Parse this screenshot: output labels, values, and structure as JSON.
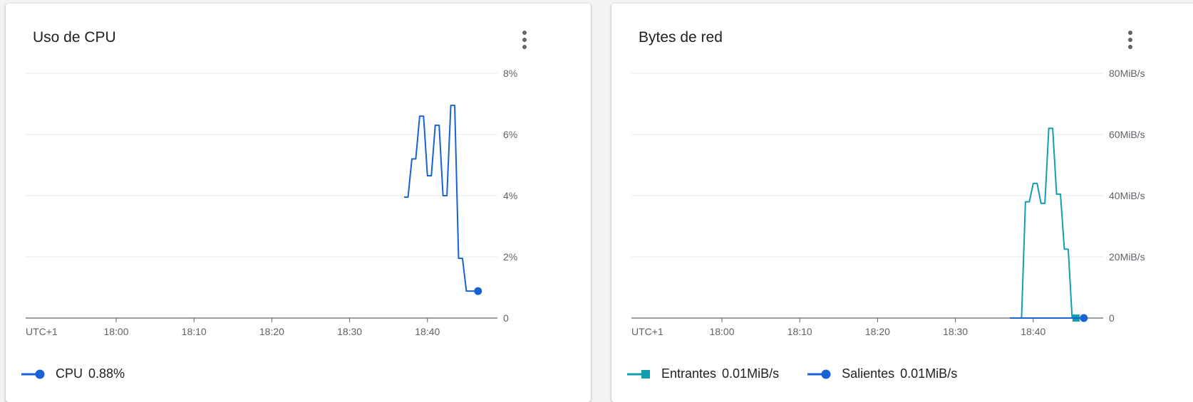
{
  "chart_data": [
    {
      "type": "line",
      "title": "Uso de CPU",
      "timezone_label": "UTC+1",
      "x_ticks": [
        "18:00",
        "18:10",
        "18:20",
        "18:30",
        "18:40"
      ],
      "x_range": [
        "17:48.4",
        "18:48.4"
      ],
      "y_ticks": [
        "8%",
        "6%",
        "4%",
        "2%",
        "0"
      ],
      "ylim": [
        0,
        8
      ],
      "y_unit": "%",
      "grid": true,
      "legend_position": "bottom-left",
      "series": [
        {
          "name": "CPU",
          "current_value": "0.88%",
          "color": "#1a62d4",
          "marker": "circle",
          "x": [
            "18:37:00",
            "18:37:30",
            "18:38:00",
            "18:38:30",
            "18:39:00",
            "18:39:30",
            "18:40:00",
            "18:40:30",
            "18:41:00",
            "18:41:30",
            "18:42:00",
            "18:42:30",
            "18:43:00",
            "18:43:30",
            "18:44:00",
            "18:44:30",
            "18:45:00",
            "18:45:30",
            "18:46:00",
            "18:46:30"
          ],
          "values": [
            3.95,
            3.95,
            5.2,
            5.2,
            6.6,
            6.6,
            4.65,
            4.65,
            6.3,
            6.3,
            4.0,
            4.0,
            6.95,
            6.95,
            1.95,
            1.95,
            0.88,
            0.88,
            0.88,
            0.88
          ]
        }
      ]
    },
    {
      "type": "line",
      "title": "Bytes de red",
      "timezone_label": "UTC+1",
      "x_ticks": [
        "18:00",
        "18:10",
        "18:20",
        "18:30",
        "18:40"
      ],
      "y_ticks": [
        "80MiB/s",
        "60MiB/s",
        "40MiB/s",
        "20MiB/s",
        "0"
      ],
      "ylim": [
        0,
        80
      ],
      "y_unit": "MiB/s",
      "grid": true,
      "legend_position": "bottom-left",
      "series": [
        {
          "name": "Entrantes",
          "current_value": "0.01MiB/s",
          "color": "#129eaf",
          "marker": "square",
          "x": [
            "18:37:00",
            "18:37:30",
            "18:38:00",
            "18:38:30",
            "18:39:00",
            "18:39:30",
            "18:40:00",
            "18:40:30",
            "18:41:00",
            "18:41:30",
            "18:42:00",
            "18:42:30",
            "18:43:00",
            "18:43:30",
            "18:44:00",
            "18:44:30",
            "18:45:00",
            "18:45:30"
          ],
          "values": [
            0,
            0,
            0,
            0,
            38,
            38,
            44,
            44,
            37.5,
            37.5,
            62,
            62,
            40.5,
            40.5,
            22.5,
            22.5,
            0.01,
            0.01
          ]
        },
        {
          "name": "Salientes",
          "current_value": "0.01MiB/s",
          "color": "#1a62d4",
          "marker": "circle",
          "x": [
            "18:37:00",
            "18:46:30"
          ],
          "values": [
            0.01,
            0.01
          ]
        }
      ]
    }
  ]
}
